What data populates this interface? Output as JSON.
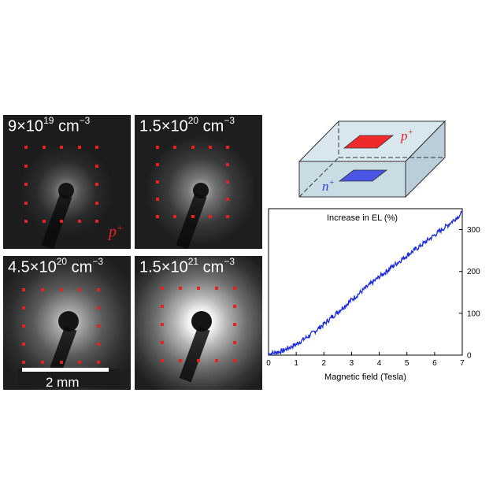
{
  "panels": [
    {
      "base": "9×10",
      "exp": "19",
      "unit": " cm",
      "unit_exp": "−3"
    },
    {
      "base": "1.5×10",
      "exp": "20",
      "unit": " cm",
      "unit_exp": "−3"
    },
    {
      "base": "4.5×10",
      "exp": "20",
      "unit": " cm",
      "unit_exp": "−3"
    },
    {
      "base": "1.5×10",
      "exp": "21",
      "unit": " cm",
      "unit_exp": "−3"
    }
  ],
  "panel_corner_label": {
    "letter": "p",
    "sup": "+"
  },
  "scale_bar": {
    "label": "2 mm"
  },
  "device": {
    "top_label": {
      "letter": "p",
      "sup": "+"
    },
    "bottom_label": {
      "letter": "n",
      "sup": "+"
    },
    "colors": {
      "top_contact": "#ee2a2a",
      "bottom_contact": "#4a55e6",
      "block": "#d3e3ea"
    }
  },
  "chart_data": {
    "type": "line",
    "title": "Increase in EL (%)",
    "xlabel": "Magnetic field (Tesla)",
    "ylabel": "",
    "xlim": [
      0,
      7
    ],
    "ylim": [
      0,
      350
    ],
    "xticks": [
      "0",
      "1",
      "2",
      "3",
      "4",
      "5",
      "6",
      "7"
    ],
    "yticks": [
      "0",
      "100",
      "200",
      "300"
    ],
    "y_axis_side": "right",
    "series": [
      {
        "color": "#1a2be0",
        "x": [
          0,
          0.5,
          1,
          1.5,
          2,
          2.5,
          3,
          3.5,
          4,
          4.5,
          5,
          5.5,
          6,
          6.5,
          7
        ],
        "values": [
          3,
          10,
          26,
          48,
          74,
          103,
          132,
          160,
          187,
          213,
          238,
          262,
          287,
          312,
          340
        ]
      }
    ]
  }
}
